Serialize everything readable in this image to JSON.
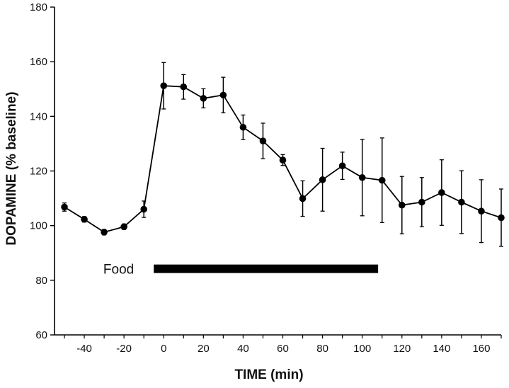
{
  "chart_data": {
    "type": "line",
    "title": "",
    "xlabel": "TIME (min)",
    "ylabel": "DOPAMINE (% baseline)",
    "xlim": [
      -55,
      170
    ],
    "ylim": [
      60,
      180
    ],
    "xticks": [
      -40,
      -20,
      0,
      20,
      40,
      60,
      80,
      100,
      120,
      140,
      160
    ],
    "yticks": [
      60,
      80,
      100,
      120,
      140,
      160,
      180
    ],
    "grid": false,
    "series": [
      {
        "x": [
          -50,
          -40,
          -30,
          -20,
          -10,
          0,
          10,
          20,
          30,
          40,
          50,
          60,
          70,
          80,
          90,
          100,
          110,
          120,
          130,
          140,
          150,
          160,
          170
        ],
        "y": [
          106.8,
          102.3,
          97.6,
          99.6,
          106.0,
          151.2,
          150.8,
          146.6,
          147.8,
          136.0,
          131.0,
          124.0,
          109.9,
          116.8,
          121.9,
          117.6,
          116.6,
          107.5,
          108.6,
          112.1,
          108.6,
          105.3,
          102.9
        ],
        "error": [
          1.5,
          1.0,
          1.0,
          1.0,
          3.0,
          8.5,
          4.5,
          3.5,
          6.5,
          4.5,
          6.5,
          2.0,
          6.5,
          11.5,
          5.0,
          14.0,
          15.5,
          10.5,
          9.0,
          12.0,
          11.5,
          11.5,
          10.5
        ],
        "color": "#000000"
      }
    ],
    "annotations": [
      {
        "text": "Food",
        "bar_from": -5,
        "bar_to": 108,
        "bar_y": 84.2
      }
    ]
  }
}
